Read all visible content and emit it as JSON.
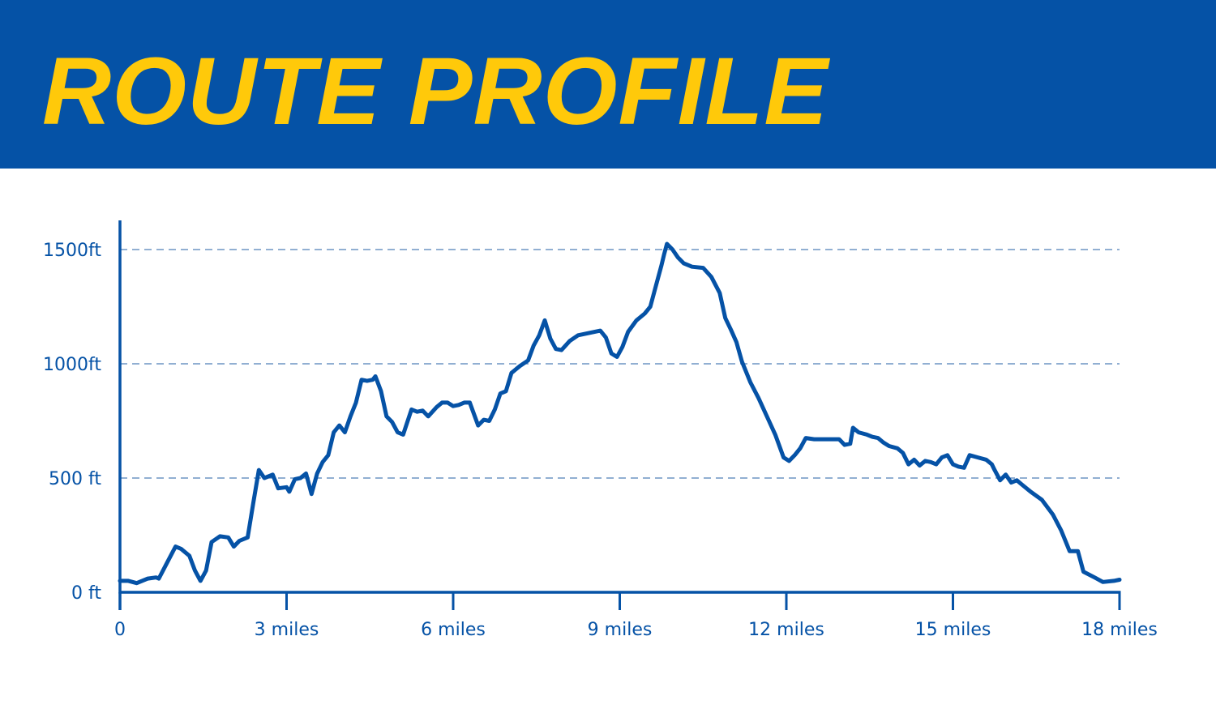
{
  "title": "ROUTE PROFILE",
  "colors": {
    "header_bg": "#0552A6",
    "title": "#FFC90A",
    "line": "#0552A6",
    "grid": "#4F7FB8"
  },
  "chart_data": {
    "type": "line",
    "title": "ROUTE PROFILE",
    "xlabel": "",
    "ylabel": "",
    "xlim": [
      0,
      18
    ],
    "ylim": [
      0,
      1500
    ],
    "grid": "horizontal dashed at y tick labels",
    "x_ticks": [
      0,
      3,
      6,
      9,
      12,
      15,
      18
    ],
    "x_tick_labels": [
      "0",
      "3 miles",
      "6 miles",
      "9 miles",
      "12 miles",
      "15 miles",
      "18 miles"
    ],
    "y_ticks": [
      0,
      500,
      1000,
      1500
    ],
    "y_tick_labels": [
      "0 ft",
      "500 ft",
      "1000ft",
      "1500ft"
    ],
    "series": [
      {
        "x": [
          0,
          0.15,
          0.3,
          0.5,
          0.65,
          0.7,
          0.85,
          1.0,
          1.1,
          1.25,
          1.35,
          1.45,
          1.55,
          1.65,
          1.8,
          1.95,
          2.05,
          2.15,
          2.3,
          2.4,
          2.5,
          2.6,
          2.75,
          2.85,
          3.0,
          3.05,
          3.15,
          3.25,
          3.35,
          3.45,
          3.55,
          3.65,
          3.75,
          3.85,
          3.95,
          4.05,
          4.15,
          4.25,
          4.35,
          4.45,
          4.55,
          4.6,
          4.7,
          4.8,
          4.9,
          5.0,
          5.1,
          5.25,
          5.35,
          5.45,
          5.55,
          5.7,
          5.8,
          5.9,
          6.0,
          6.1,
          6.2,
          6.3,
          6.45,
          6.55,
          6.65,
          6.75,
          6.85,
          6.95,
          7.05,
          7.2,
          7.35,
          7.45,
          7.55,
          7.65,
          7.75,
          7.85,
          7.95,
          8.1,
          8.25,
          8.45,
          8.65,
          8.75,
          8.85,
          8.95,
          9.05,
          9.15,
          9.3,
          9.45,
          9.55,
          9.65,
          9.75,
          9.8,
          9.85,
          9.95,
          10.05,
          10.15,
          10.3,
          10.5,
          10.65,
          10.8,
          10.9,
          11.0,
          11.1,
          11.2,
          11.35,
          11.5,
          11.65,
          11.8,
          11.95,
          12.05,
          12.15,
          12.25,
          12.35,
          12.5,
          12.65,
          12.8,
          12.95,
          13.05,
          13.15,
          13.2,
          13.3,
          13.45,
          13.55,
          13.65,
          13.75,
          13.85,
          14.0,
          14.1,
          14.2,
          14.3,
          14.4,
          14.5,
          14.6,
          14.7,
          14.8,
          14.9,
          15.0,
          15.1,
          15.2,
          15.3,
          15.45,
          15.6,
          15.7,
          15.75,
          15.85,
          15.95,
          16.05,
          16.15,
          16.25,
          16.4,
          16.6,
          16.8,
          16.95,
          17.1,
          17.25,
          17.35,
          17.55,
          17.7,
          17.9,
          18.0
        ],
        "y": [
          50,
          50,
          40,
          60,
          65,
          60,
          130,
          200,
          190,
          160,
          95,
          50,
          95,
          220,
          245,
          240,
          200,
          225,
          240,
          390,
          535,
          500,
          515,
          455,
          460,
          440,
          495,
          500,
          520,
          430,
          520,
          570,
          600,
          700,
          730,
          700,
          770,
          830,
          930,
          925,
          930,
          945,
          880,
          770,
          745,
          700,
          690,
          800,
          790,
          795,
          770,
          810,
          830,
          830,
          815,
          820,
          830,
          830,
          730,
          755,
          750,
          800,
          870,
          880,
          960,
          990,
          1015,
          1080,
          1125,
          1190,
          1110,
          1065,
          1060,
          1100,
          1125,
          1135,
          1145,
          1115,
          1045,
          1030,
          1075,
          1140,
          1190,
          1220,
          1250,
          1340,
          1430,
          1480,
          1525,
          1500,
          1465,
          1440,
          1425,
          1420,
          1380,
          1310,
          1200,
          1150,
          1095,
          1010,
          920,
          850,
          770,
          690,
          590,
          575,
          600,
          630,
          675,
          670,
          670,
          670,
          670,
          645,
          650,
          720,
          700,
          690,
          680,
          675,
          655,
          640,
          630,
          610,
          560,
          580,
          555,
          575,
          570,
          560,
          590,
          600,
          560,
          550,
          545,
          600,
          590,
          580,
          560,
          535,
          490,
          515,
          480,
          490,
          470,
          440,
          405,
          340,
          270,
          180,
          180,
          90,
          65,
          45,
          50,
          55
        ]
      }
    ]
  }
}
